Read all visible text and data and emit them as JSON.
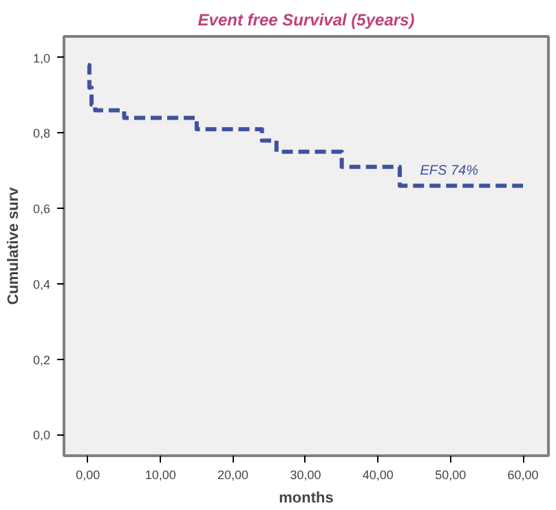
{
  "chart_data": {
    "type": "step",
    "title": "Event free Survival (5years)",
    "xlabel": "months",
    "ylabel": "Cumulative surv",
    "x": [
      0,
      0.2,
      0.5,
      1,
      5,
      15,
      24,
      26,
      35,
      43,
      60
    ],
    "series": [
      {
        "color": "#3f51a0",
        "values": [
          0.98,
          0.92,
          0.875,
          0.86,
          0.84,
          0.81,
          0.78,
          0.75,
          0.71,
          0.66,
          0.66
        ]
      }
    ],
    "line_style": "dashed",
    "grid": false,
    "xlim": [
      -3.3,
      63.5
    ],
    "ylim": [
      -0.056,
      1.056
    ],
    "xticks": [
      {
        "value": 0,
        "label": "0,00"
      },
      {
        "value": 10,
        "label": "10,00"
      },
      {
        "value": 20,
        "label": "20,00"
      },
      {
        "value": 30,
        "label": "30,00"
      },
      {
        "value": 40,
        "label": "40,00"
      },
      {
        "value": 50,
        "label": "50,00"
      },
      {
        "value": 60,
        "label": "60,00"
      }
    ],
    "yticks": [
      {
        "value": 0,
        "label": "0,0"
      },
      {
        "value": 0.2,
        "label": "0,2"
      },
      {
        "value": 0.4,
        "label": "0,4"
      },
      {
        "value": 0.6,
        "label": "0,6"
      },
      {
        "value": 0.8,
        "label": "0,8"
      },
      {
        "value": 1.0,
        "label": "1,0"
      }
    ],
    "annotations": [
      "EFS 74%"
    ]
  }
}
